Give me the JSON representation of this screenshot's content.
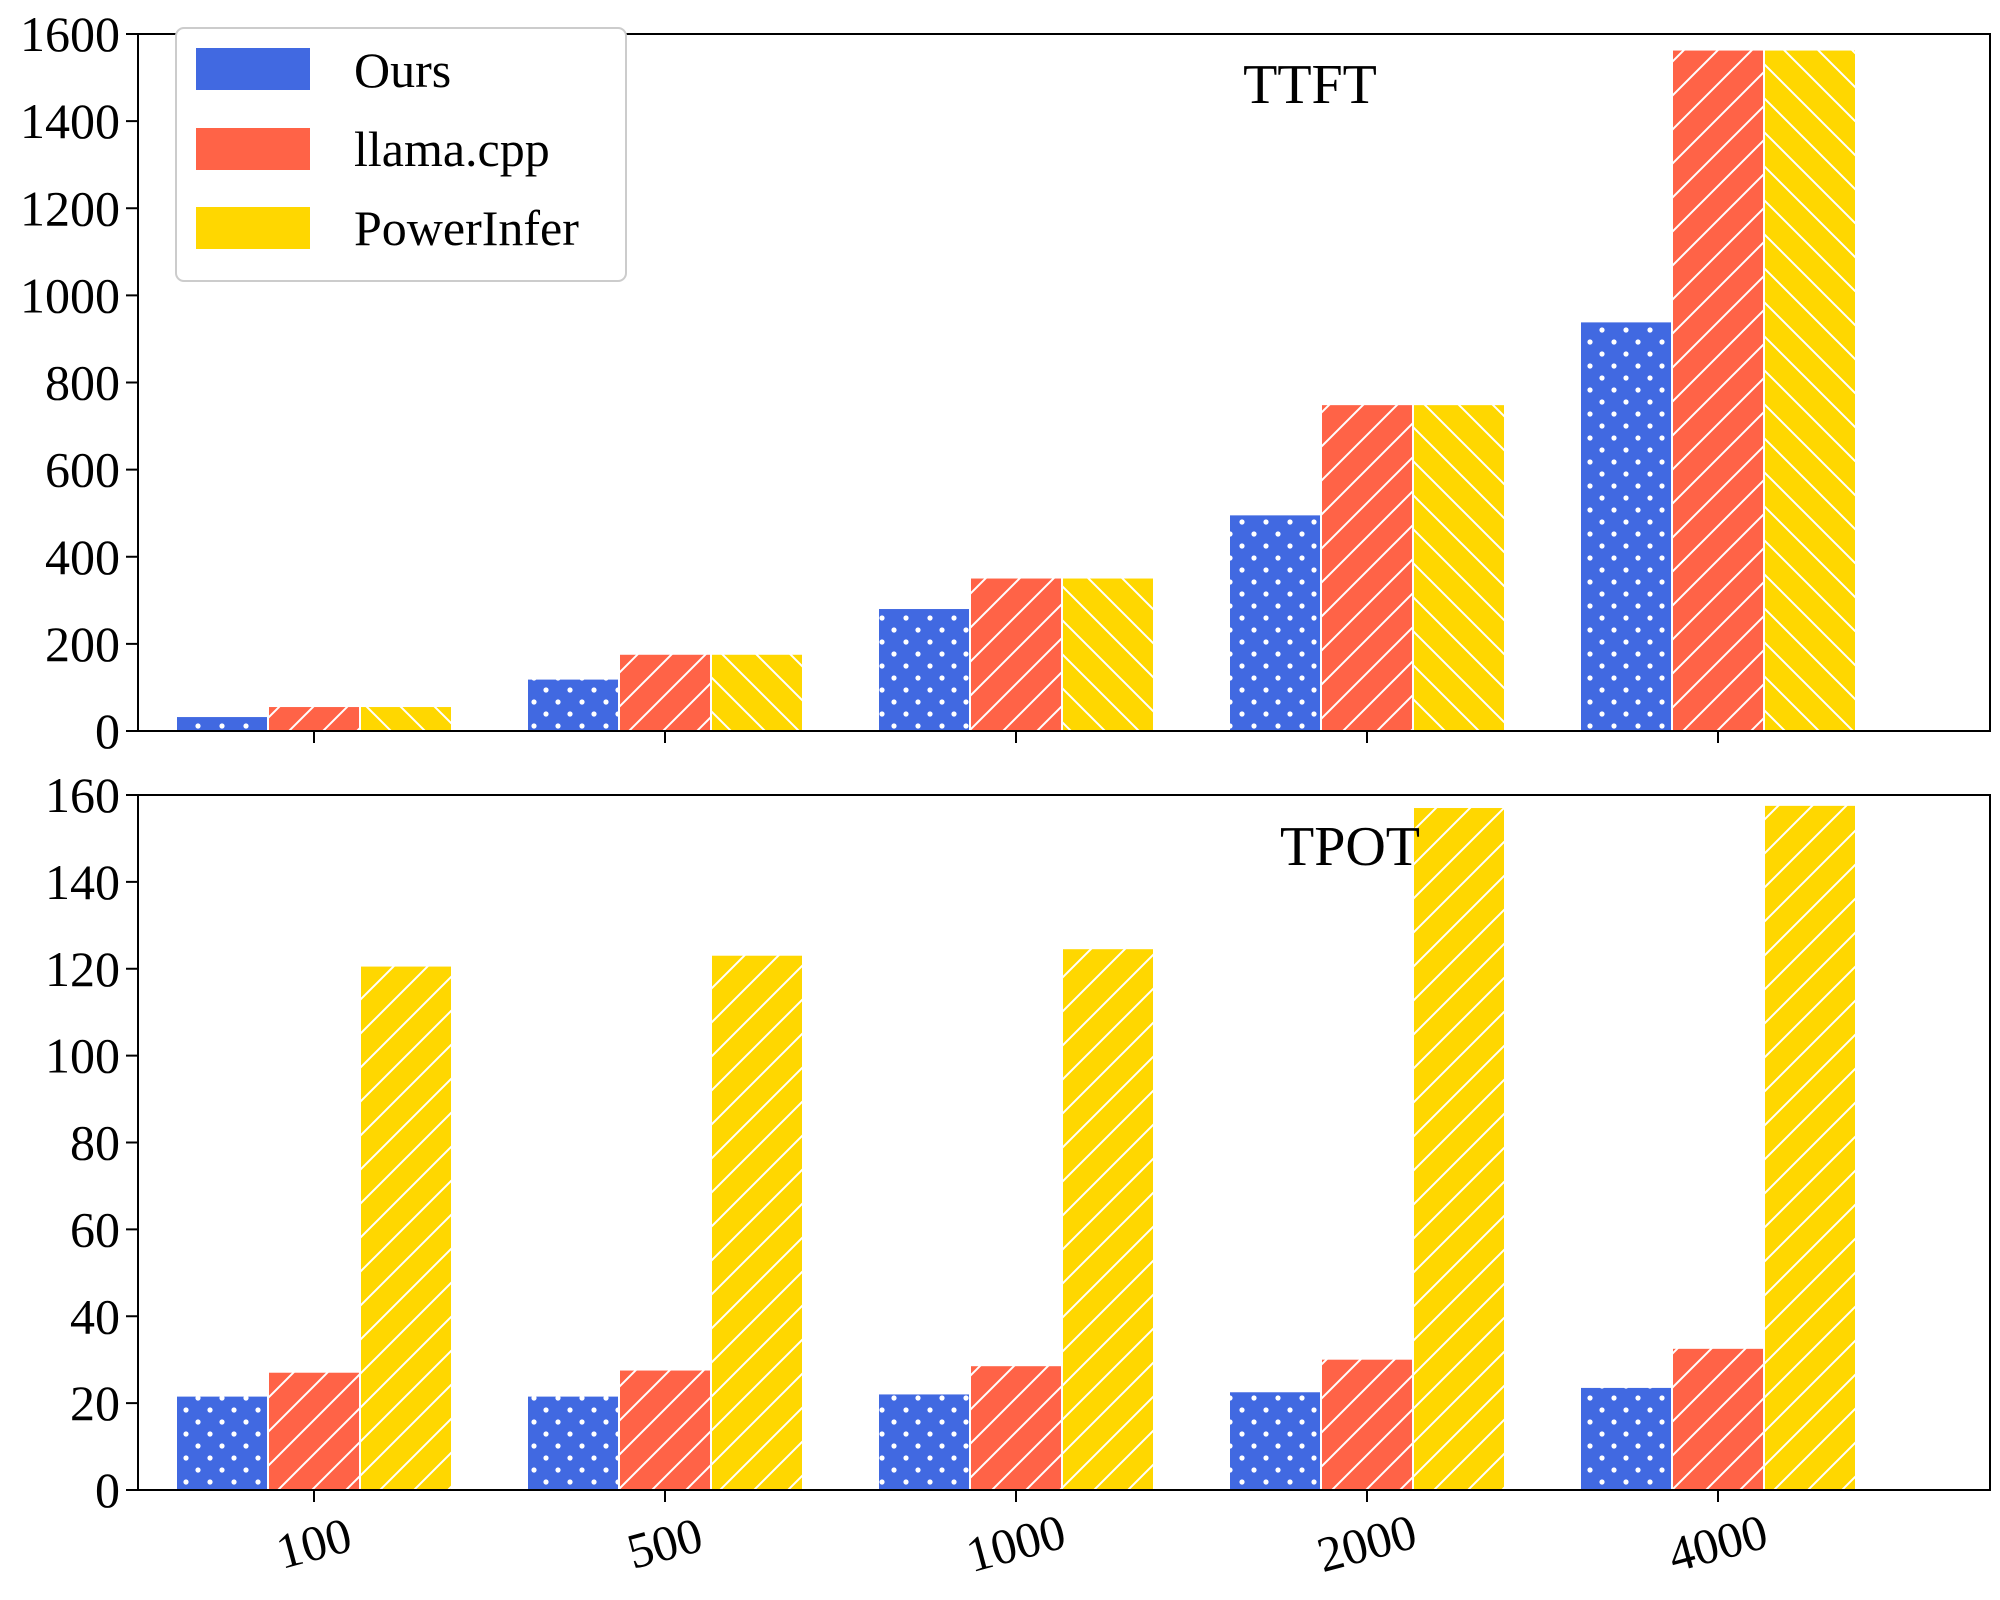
{
  "chart_data": [
    {
      "type": "bar",
      "title": "TTFT",
      "xlabel": "",
      "ylabel": "",
      "categories": [
        "100",
        "500",
        "1000",
        "2000",
        "4000"
      ],
      "ylim": [
        0,
        1600
      ],
      "yticks": [
        "0",
        "200",
        "400",
        "600",
        "800",
        "1000",
        "1200",
        "1400",
        "1600"
      ],
      "grid": false,
      "series": [
        {
          "name": "Ours",
          "values": [
            32,
            118,
            280,
            495,
            938
          ],
          "color": "#4169E1",
          "pattern": "dots"
        },
        {
          "name": "llama.cpp",
          "values": [
            55,
            175,
            350,
            748,
            1562
          ],
          "color": "#FF6347",
          "pattern": "forward-hatch"
        },
        {
          "name": "PowerInfer",
          "values": [
            55,
            175,
            350,
            748,
            1562
          ],
          "color": "#FFD700",
          "pattern": "back-hatch"
        }
      ],
      "legend": {
        "position": "top-left",
        "entries": [
          "Ours",
          "llama.cpp",
          "PowerInfer"
        ]
      }
    },
    {
      "type": "bar",
      "title": "TPOT",
      "xlabel": "",
      "ylabel": "",
      "categories": [
        "100",
        "500",
        "1000",
        "2000",
        "4000"
      ],
      "ylim": [
        0,
        160
      ],
      "yticks": [
        "0",
        "20",
        "40",
        "60",
        "80",
        "100",
        "120",
        "140",
        "160"
      ],
      "grid": false,
      "series": [
        {
          "name": "Ours",
          "values": [
            21.5,
            21.5,
            22,
            22.5,
            23.5
          ],
          "color": "#4169E1",
          "pattern": "dots"
        },
        {
          "name": "llama.cpp",
          "values": [
            27,
            27.5,
            28.5,
            30,
            32.5
          ],
          "color": "#FF6347",
          "pattern": "forward-hatch"
        },
        {
          "name": "PowerInfer",
          "values": [
            120.5,
            123,
            124.5,
            157,
            157.5
          ],
          "color": "#FFD700",
          "pattern": "forward-hatch"
        }
      ]
    }
  ]
}
